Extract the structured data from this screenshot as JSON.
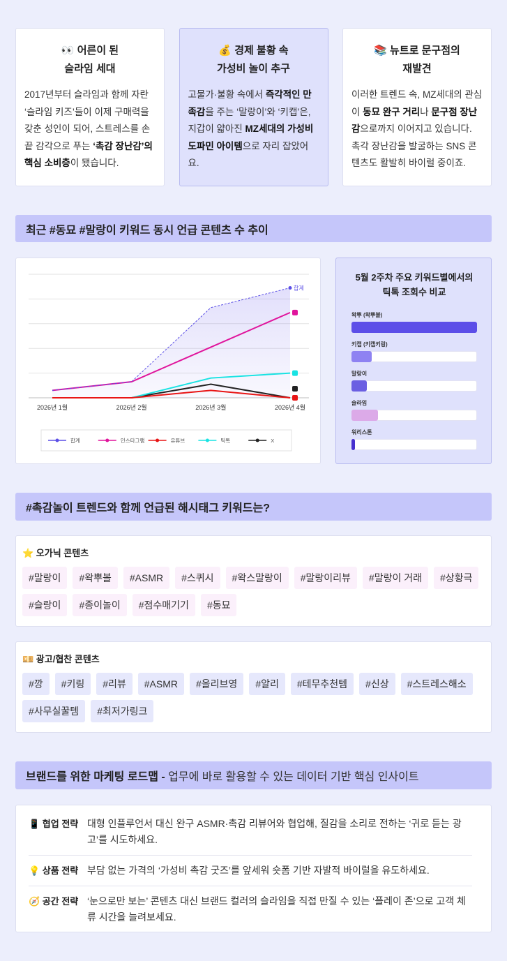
{
  "cards": [
    {
      "highlight": false,
      "title": [
        "👀 어른이 된",
        "슬라임 세대"
      ],
      "body": [
        {
          "text": "2017년부터 슬라임과 함께 자란 ‘슬라임 키즈’들이 이제 구매력을 갖춘 성인이 되어, 스트레스를 손끝 감각으로 푸는 ",
          "bold": false
        },
        {
          "text": "‘촉감 장난감’의 핵심 소비층",
          "bold": true
        },
        {
          "text": "이 됐습니다.",
          "bold": false
        }
      ]
    },
    {
      "highlight": true,
      "title": [
        "💰 경제 불황 속",
        "가성비 놀이 추구"
      ],
      "body": [
        {
          "text": "고물가·불황 속에서 ",
          "bold": false
        },
        {
          "text": "즉각적인 만족감",
          "bold": true
        },
        {
          "text": "을 주는 ‘말랑이’와 ‘키캡’은, 지갑이 얇아진 ",
          "bold": false
        },
        {
          "text": "MZ세대의 가성비 도파민 아이템",
          "bold": true
        },
        {
          "text": "으로 자리 잡았어요.",
          "bold": false
        }
      ]
    },
    {
      "highlight": false,
      "title": [
        "📚 뉴트로 문구점의",
        "재발견"
      ],
      "body": [
        {
          "text": "이러한 트렌드 속, MZ세대의 관심이 ",
          "bold": false
        },
        {
          "text": "동묘 완구 거리",
          "bold": true
        },
        {
          "text": "나 ",
          "bold": false
        },
        {
          "text": "문구점 장난감",
          "bold": true
        },
        {
          "text": "으로까지 이어지고 있습니다. 촉각 장난감을 발굴하는 SNS 콘텐츠도 활발히 바이럴 중이죠.",
          "bold": false
        }
      ]
    }
  ],
  "trend_heading": "최근 #동묘 #말랑이 키워드 동시 언급 콘텐츠 수 추이",
  "chart_data": [
    {
      "type": "line",
      "categories": [
        "2026년 1월",
        "2026년 2월",
        "2026년 3월",
        "2026년 4월"
      ],
      "ylim": [
        0,
        100
      ],
      "yticks": [
        0,
        20,
        40,
        60,
        80,
        100
      ],
      "grid": true,
      "legend": "bottom",
      "series": [
        {
          "name": "합계",
          "color": "#5b4fe6",
          "dashed": true,
          "area": true,
          "values": [
            6,
            13,
            73,
            89
          ]
        },
        {
          "name": "인스타그램",
          "color": "#e0149c",
          "values": [
            6,
            13,
            41,
            69
          ]
        },
        {
          "name": "유튜브",
          "color": "#e81515",
          "values": [
            0,
            0,
            6,
            0
          ]
        },
        {
          "name": "틱톡",
          "color": "#19e3e3",
          "values": [
            0,
            0,
            16,
            20
          ]
        },
        {
          "name": "X",
          "color": "#222222",
          "values": [
            0,
            0,
            11,
            0
          ]
        }
      ]
    },
    {
      "type": "hbar",
      "title": "5월 2주차 주요 키워드별에서의 틱톡 조회수 비교",
      "categories": [
        "왁뿌 (왁뿌볼)",
        "키캡 (키캡키링)",
        "말랑이",
        "슬라임",
        "워리스톤"
      ],
      "values": [
        100,
        16,
        12,
        21,
        3
      ],
      "colors": [
        "#5c4ee8",
        "#8e82f2",
        "#6b5fe2",
        "#dcaae8",
        "#4630cf"
      ],
      "xlim": [
        0,
        100
      ]
    }
  ],
  "hashtag_heading": "#촉감놀이 트렌드와 함께 언급된 해시태그 키워드는?",
  "hashtag_groups": [
    {
      "title": "⭐ 오가닉 콘텐츠",
      "tag_color": "#fbf0fb",
      "tags": [
        "#말랑이",
        "#왁뿌볼",
        "#ASMR",
        "#스퀴시",
        "#왁스말랑이",
        "#말랑이리뷰",
        "#말랑이 거래",
        "#상황극",
        "#슬랑이",
        "#종이놀이",
        "#점수매기기",
        "#동묘"
      ]
    },
    {
      "title": "💴 광고/협찬 콘텐츠",
      "tag_color": "#e6e8fc",
      "tags": [
        "#깡",
        "#키링",
        "#리뷰",
        "#ASMR",
        "#올리브영",
        "#알리",
        "#테무추천템",
        "#신상",
        "#스트레스해소",
        "#사무실꿀템",
        "#최저가링크"
      ]
    }
  ],
  "roadmap_heading": {
    "bold": "브랜드를 위한 마케팅 로드맵 -",
    "text": " 업무에 바로 활용할 수 있는 데이터 기반 핵심 인사이트"
  },
  "roadmap": [
    {
      "label": "📱 협업 전략",
      "text": "대형 인플루언서 대신 완구 ASMR·촉감 리뷰어와 협업해, 질감을 소리로 전하는 ‘귀로 듣는 광고’를 시도하세요."
    },
    {
      "label": "💡 상품 전략",
      "text": "부담 없는 가격의 ‘가성비 촉감 굿즈’를 앞세워 숏폼 기반 자발적 바이럴을 유도하세요."
    },
    {
      "label": "🧭 공간 전략",
      "text": "‘눈으로만 보는’ 콘텐츠 대신 브랜드 컬러의 슬라임을 직접 만질 수 있는 ‘플레이 존’으로 고객 체류 시간을 늘려보세요."
    }
  ]
}
